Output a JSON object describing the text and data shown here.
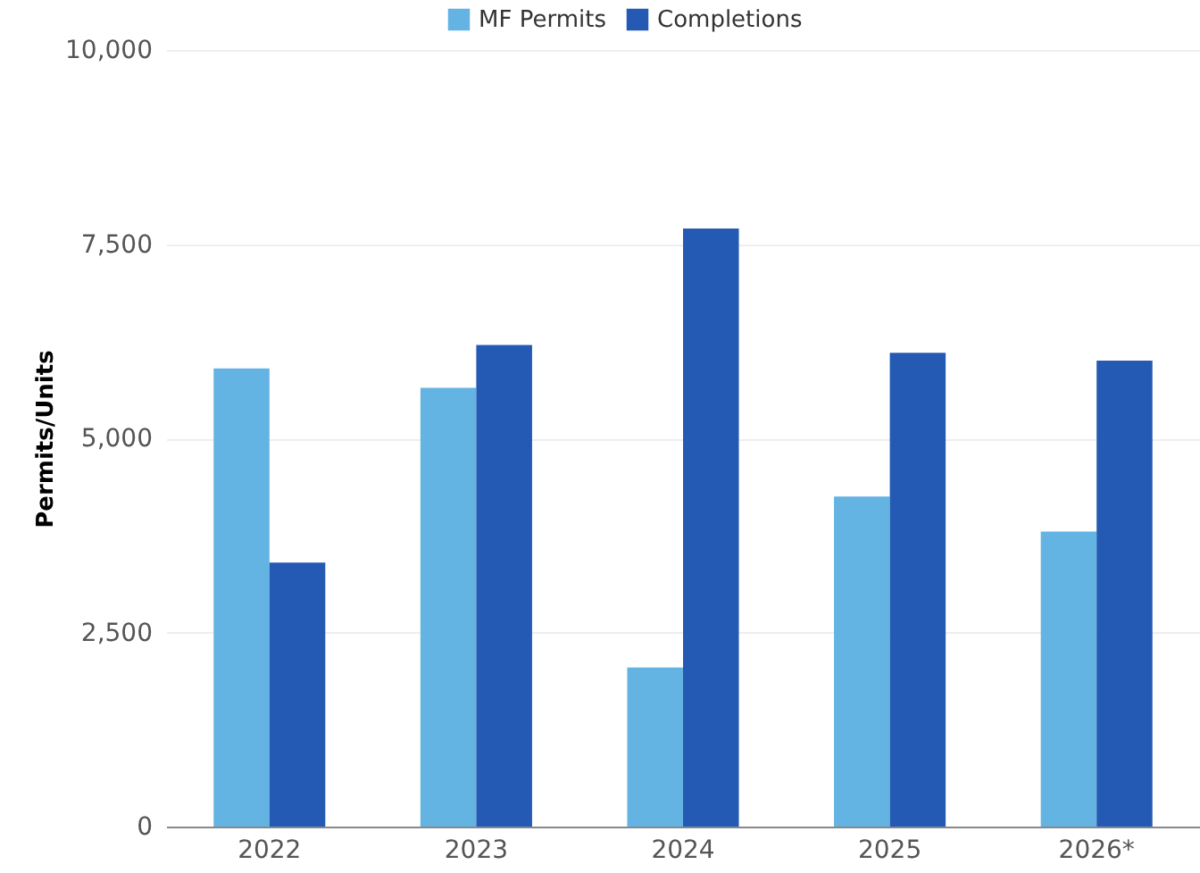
{
  "chart_data": {
    "type": "bar",
    "ylabel": "Permits/Units",
    "categories": [
      "2022",
      "2023",
      "2024",
      "2025",
      "2026*"
    ],
    "series": [
      {
        "name": "MF Permits",
        "color": "#63b3e3",
        "values": [
          5900,
          5650,
          2050,
          4250,
          3800
        ]
      },
      {
        "name": "Completions",
        "color": "#245ab3",
        "values": [
          3400,
          6200,
          7700,
          6100,
          6000
        ]
      }
    ],
    "ylim": [
      0,
      10000
    ],
    "yticks": [
      0,
      {
        "value": 2500,
        "label": "2,500"
      },
      {
        "value": 5000,
        "label": "5,000"
      },
      {
        "value": 7500,
        "label": "7,500"
      },
      {
        "value": 10000,
        "label": "10,000"
      }
    ],
    "grid": "y",
    "legend": "top"
  }
}
